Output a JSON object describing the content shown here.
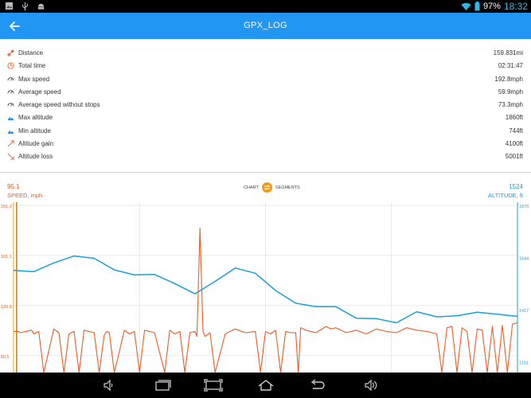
{
  "status_bar": {
    "battery": "97%",
    "time": "18:32",
    "icons": [
      "gallery-icon",
      "usb-icon",
      "android-icon",
      "wifi-icon",
      "battery-icon"
    ]
  },
  "app_bar": {
    "title": "GPX_LOG",
    "back_icon": "arrow-left-icon"
  },
  "stats": [
    {
      "icon": "distance-icon",
      "label": "Distance",
      "value": "159.831mi"
    },
    {
      "icon": "clock-icon",
      "label": "Total time",
      "value": "02:31:47"
    },
    {
      "icon": "speedometer-icon",
      "label": "Max speed",
      "value": "192.8mph"
    },
    {
      "icon": "speedometer-icon",
      "label": "Average speed",
      "value": "59.9mph"
    },
    {
      "icon": "speedometer-icon",
      "label": "Average speed without stops",
      "value": "73.3mph"
    },
    {
      "icon": "mountain-icon",
      "label": "Max altitude",
      "value": "1860ft"
    },
    {
      "icon": "mountain-icon",
      "label": "Min altitude",
      "value": "744ft"
    },
    {
      "icon": "altitude-gain-icon",
      "label": "Altitude gain",
      "value": "4100ft"
    },
    {
      "icon": "altitude-loss-icon",
      "label": "Altitude loss",
      "value": "5001ft"
    }
  ],
  "chart_header": {
    "left_value": "95.1",
    "left_title": "SPEED, mph",
    "right_value": "1524",
    "right_title": "ALTITUDE, ft",
    "toggle_left": "CHART",
    "toggle_right": "SEGMENTS"
  },
  "colors": {
    "primary": "#2196f3",
    "speed": "#ee5a24",
    "altitude": "#1a9fd6",
    "toggle": "#f39c12"
  },
  "chart_data": {
    "type": "line",
    "left_axis": {
      "label": "SPEED, mph",
      "ticks": [
        "201.3",
        "161.1",
        "120.8",
        "80.5"
      ],
      "tick_values": [
        201.3,
        161.1,
        120.8,
        80.5
      ],
      "range": [
        67,
        201.3
      ]
    },
    "right_axis": {
      "label": "ALTITUDE, ft",
      "ticks": [
        "1870",
        "1644",
        "1417",
        "1191"
      ],
      "tick_values": [
        1870,
        1644,
        1417,
        1191
      ],
      "range": [
        1144,
        1870
      ]
    },
    "grid": true,
    "x_range": [
      0,
      100
    ],
    "series": [
      {
        "name": "ALTITUDE, ft",
        "axis": "right",
        "x": [
          0,
          4,
          8,
          12,
          16,
          20,
          24,
          28,
          32,
          36,
          40,
          44,
          48,
          52,
          56,
          60,
          64,
          68,
          72,
          76,
          80,
          84,
          88,
          92,
          96,
          100
        ],
        "y": [
          1588,
          1582,
          1620,
          1650,
          1640,
          1590,
          1568,
          1570,
          1530,
          1486,
          1540,
          1598,
          1575,
          1500,
          1445,
          1430,
          1430,
          1380,
          1378,
          1360,
          1408,
          1386,
          1390,
          1406,
          1397,
          1388
        ]
      },
      {
        "name": "SPEED, mph",
        "axis": "left",
        "x": [
          0,
          1,
          1.3,
          3.6,
          4,
          5,
          6,
          8,
          9,
          10,
          11,
          12,
          13,
          14,
          16,
          17,
          18,
          18.5,
          19,
          20,
          22,
          23,
          24,
          25,
          26,
          28,
          30,
          31,
          32,
          33,
          34,
          35,
          36,
          36.4,
          37,
          37.6,
          38,
          39,
          40,
          42,
          44,
          46,
          48,
          49,
          50,
          51,
          52,
          53,
          54,
          55,
          56,
          56.5,
          57,
          58,
          60,
          62,
          63,
          64,
          66,
          68,
          70,
          72,
          74,
          76,
          78,
          80,
          82,
          84,
          85,
          86,
          87,
          88,
          89,
          90,
          91,
          92,
          93,
          94,
          95,
          96,
          97,
          98,
          99,
          100
        ],
        "y": [
          100,
          100,
          99,
          101,
          98,
          100,
          67,
          102,
          99,
          67,
          98,
          100,
          67,
          101,
          99,
          67,
          97,
          100,
          99,
          67,
          101,
          98,
          100,
          67,
          101,
          99,
          67,
          101,
          98,
          100,
          67,
          99,
          100,
          96,
          183,
          100,
          96,
          99,
          67,
          98,
          102,
          99,
          100,
          67,
          100,
          98,
          101,
          67,
          100,
          99,
          99,
          67,
          103,
          101,
          99,
          104,
          102,
          103,
          99,
          101,
          98,
          102,
          100,
          99,
          103,
          101,
          100,
          98,
          67,
          103,
          104,
          67,
          103,
          100,
          67,
          102,
          101,
          67,
          104,
          67,
          105,
          67,
          106,
          107
        ]
      }
    ],
    "highlight_x": 0.6
  },
  "nav_bar": {
    "buttons": [
      "volume-down-icon",
      "recent-apps-icon",
      "screenshot-icon",
      "home-icon",
      "back-icon",
      "volume-up-icon"
    ]
  }
}
